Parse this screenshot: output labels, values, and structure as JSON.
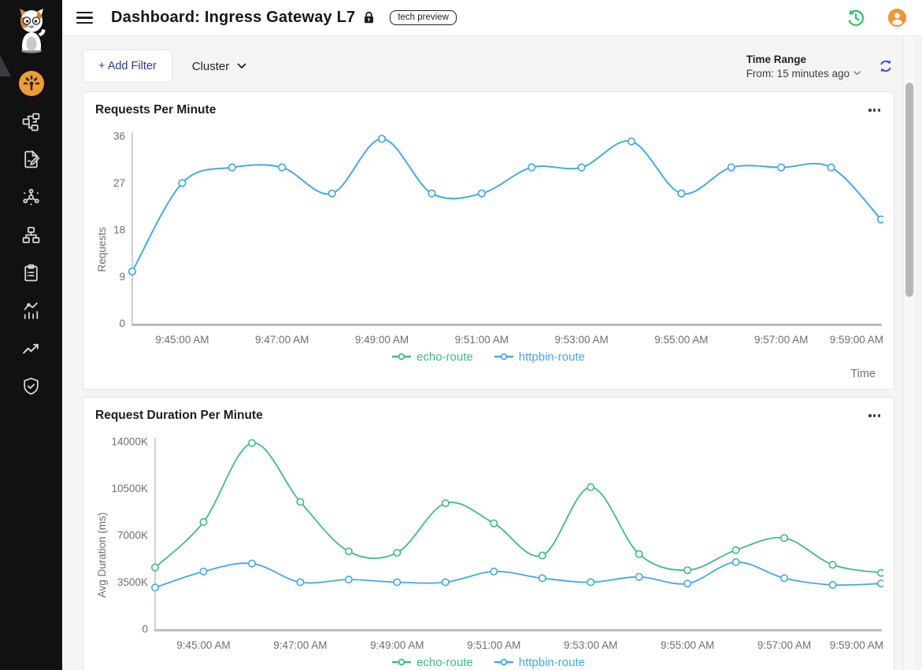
{
  "header": {
    "title": "Dashboard: Ingress Gateway L7",
    "badge": "tech preview",
    "icons": [
      "hamburger-icon",
      "lock-icon",
      "history-icon",
      "user-avatar-icon"
    ]
  },
  "sidebar": {
    "logo_icon": "kuma-cat-logo",
    "items": [
      {
        "icon": "dashboard-gauge-icon",
        "active": true
      },
      {
        "icon": "topology-icon",
        "active": false
      },
      {
        "icon": "document-edit-icon",
        "active": false
      },
      {
        "icon": "mesh-icon",
        "active": false
      },
      {
        "icon": "zones-icon",
        "active": false
      },
      {
        "icon": "policies-clipboard-icon",
        "active": false
      },
      {
        "icon": "metrics-icon",
        "active": false
      },
      {
        "icon": "trends-icon",
        "active": false
      },
      {
        "icon": "security-shield-icon",
        "active": false
      }
    ]
  },
  "filter_bar": {
    "add_filter": "+ Add Filter",
    "cluster": "Cluster",
    "time_range_label": "Time Range",
    "time_range_value": "From: 15 minutes ago",
    "refresh_icon": "refresh-icon"
  },
  "colors": {
    "accent_orange": "#f09b38",
    "accent_green": "#2ac266",
    "accent_indigo": "#2d3b8e",
    "series_echo_route": "#42b983",
    "series_httpbin_route": "#44a8e0"
  },
  "chart_data": [
    {
      "type": "line",
      "title": "Requests Per Minute",
      "xlabel": "Time",
      "ylabel": "Requests",
      "ylim": [
        0,
        36
      ],
      "ytick_values": [
        0,
        9,
        18,
        27,
        36
      ],
      "ytick_labels": [
        "0",
        "9",
        "18",
        "27",
        "36"
      ],
      "x": [
        "9:44:00 AM",
        "9:45:00 AM",
        "9:46:00 AM",
        "9:47:00 AM",
        "9:48:00 AM",
        "9:49:00 AM",
        "9:50:00 AM",
        "9:51:00 AM",
        "9:52:00 AM",
        "9:53:00 AM",
        "9:54:00 AM",
        "9:55:00 AM",
        "9:56:00 AM",
        "9:57:00 AM",
        "9:58:00 AM",
        "9:59:00 AM"
      ],
      "xtick_labels": [
        "9:45:00 AM",
        "9:47:00 AM",
        "9:49:00 AM",
        "9:51:00 AM",
        "9:53:00 AM",
        "9:55:00 AM",
        "9:57:00 AM",
        "9:59:00 AM"
      ],
      "grid": false,
      "legend_position": "bottom",
      "series": [
        {
          "name": "echo-route",
          "color": "#42b983",
          "values": [
            10,
            27,
            30,
            30,
            25,
            35.5,
            25,
            25,
            30,
            30,
            35,
            25,
            30,
            30,
            30,
            20
          ]
        },
        {
          "name": "httpbin-route",
          "color": "#44a8e0",
          "values": [
            10,
            27,
            30,
            30,
            25,
            35.5,
            25,
            25,
            30,
            30,
            35,
            25,
            30,
            30,
            30,
            20
          ]
        }
      ]
    },
    {
      "type": "line",
      "title": "Request Duration Per Minute",
      "xlabel": "",
      "ylabel": "Avg Duration (ms)",
      "ylim": [
        0,
        14000
      ],
      "ytick_values": [
        0,
        3500,
        7000,
        10500,
        14000
      ],
      "ytick_labels": [
        "0",
        "3500K",
        "7000K",
        "10500K",
        "14000K"
      ],
      "x": [
        "9:44:00 AM",
        "9:45:00 AM",
        "9:46:00 AM",
        "9:47:00 AM",
        "9:48:00 AM",
        "9:49:00 AM",
        "9:50:00 AM",
        "9:51:00 AM",
        "9:52:00 AM",
        "9:53:00 AM",
        "9:54:00 AM",
        "9:55:00 AM",
        "9:56:00 AM",
        "9:57:00 AM",
        "9:58:00 AM",
        "9:59:00 AM"
      ],
      "xtick_labels": [
        "9:45:00 AM",
        "9:47:00 AM",
        "9:49:00 AM",
        "9:51:00 AM",
        "9:53:00 AM",
        "9:55:00 AM",
        "9:57:00 AM",
        "9:59:00 AM"
      ],
      "grid": false,
      "legend_position": "bottom",
      "series": [
        {
          "name": "echo-route",
          "color": "#42b983",
          "values": [
            4600,
            8000,
            13900,
            9500,
            5800,
            5700,
            9400,
            7900,
            5500,
            10600,
            5600,
            4400,
            5900,
            6800,
            4800,
            4200
          ]
        },
        {
          "name": "httpbin-route",
          "color": "#44a8e0",
          "values": [
            3100,
            4300,
            4900,
            3500,
            3700,
            3500,
            3500,
            4300,
            3800,
            3500,
            3900,
            3400,
            5000,
            3800,
            3300,
            3400
          ]
        }
      ]
    }
  ]
}
